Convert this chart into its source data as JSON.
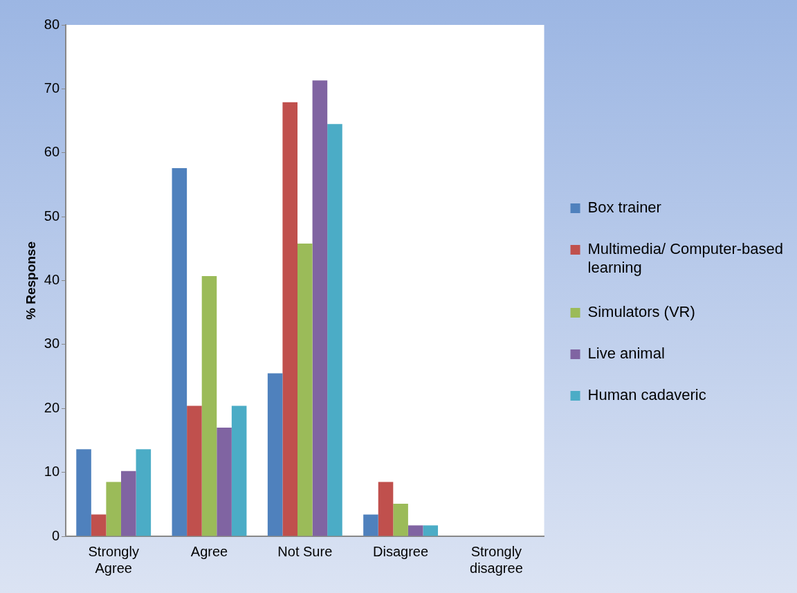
{
  "chart_data": {
    "type": "bar",
    "ylabel": "% Response",
    "categories": [
      "Strongly Agree",
      "Agree",
      "Not Sure",
      "Disagree",
      "Strongly disagree"
    ],
    "series": [
      {
        "name": "Box trainer",
        "color": "#4f81bd",
        "values": [
          13.6,
          57.6,
          25.5,
          3.4,
          0
        ]
      },
      {
        "name": "Multimedia/ Computer-based learning",
        "color": "#c0504d",
        "values": [
          3.4,
          20.4,
          67.9,
          8.5,
          0
        ]
      },
      {
        "name": "Simulators (VR)",
        "color": "#9bbb59",
        "values": [
          8.5,
          40.7,
          45.8,
          5.1,
          0
        ]
      },
      {
        "name": "Live animal",
        "color": "#8064a2",
        "values": [
          10.2,
          17.0,
          71.3,
          1.7,
          0
        ]
      },
      {
        "name": "Human cadaveric",
        "color": "#4bacc6",
        "values": [
          13.6,
          20.4,
          64.5,
          1.7,
          0
        ]
      }
    ],
    "ylim": [
      0,
      80
    ],
    "yticks": [
      0,
      10,
      20,
      30,
      40,
      50,
      60,
      70,
      80
    ],
    "legend": "right"
  }
}
